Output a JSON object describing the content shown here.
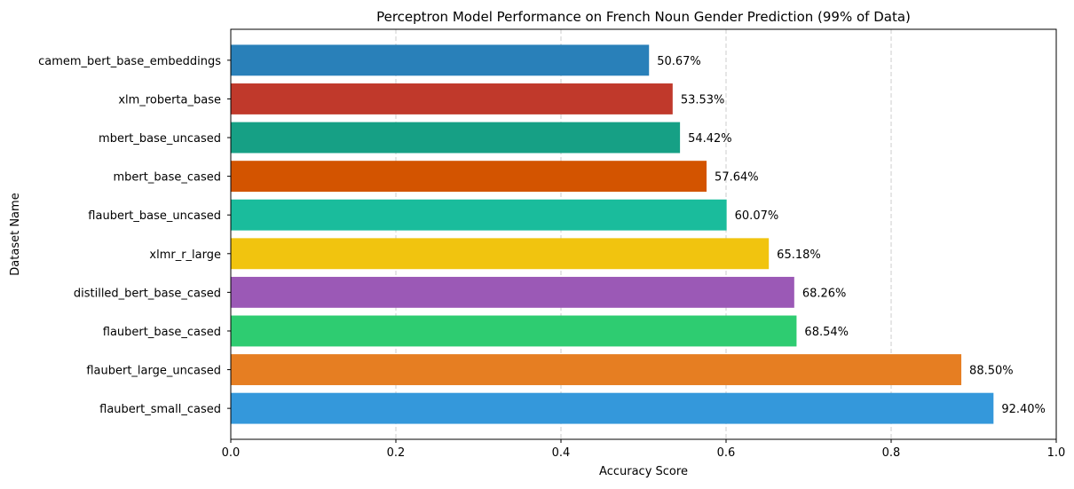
{
  "chart_data": {
    "type": "bar",
    "orientation": "horizontal",
    "title": "Perceptron Model Performance on French Noun Gender Prediction (99% of Data)",
    "xlabel": "Accuracy Score",
    "ylabel": "Dataset Name",
    "xlim": [
      0,
      1.0
    ],
    "xticks": [
      0.0,
      0.2,
      0.4,
      0.6,
      0.8,
      1.0
    ],
    "xtick_labels": [
      "0.0",
      "0.2",
      "0.4",
      "0.6",
      "0.8",
      "1.0"
    ],
    "grid": "vertical dashed",
    "categories": [
      "camem_bert_base_embeddings",
      "xlm_roberta_base",
      "mbert_base_uncased",
      "mbert_base_cased",
      "flaubert_base_uncased",
      "xlmr_r_large",
      "distilled_bert_base_cased",
      "flaubert_base_cased",
      "flaubert_large_uncased",
      "flaubert_small_cased"
    ],
    "values": [
      0.5067,
      0.5353,
      0.5442,
      0.5764,
      0.6007,
      0.6518,
      0.6826,
      0.6854,
      0.885,
      0.924
    ],
    "value_labels": [
      "50.67%",
      "53.53%",
      "54.42%",
      "57.64%",
      "60.07%",
      "65.18%",
      "68.26%",
      "68.54%",
      "88.50%",
      "92.40%"
    ],
    "colors": [
      "#2980b9",
      "#c0392b",
      "#16a085",
      "#d35400",
      "#1abc9c",
      "#f1c40f",
      "#9b59b6",
      "#2ecc71",
      "#e67e22",
      "#3498db"
    ]
  }
}
